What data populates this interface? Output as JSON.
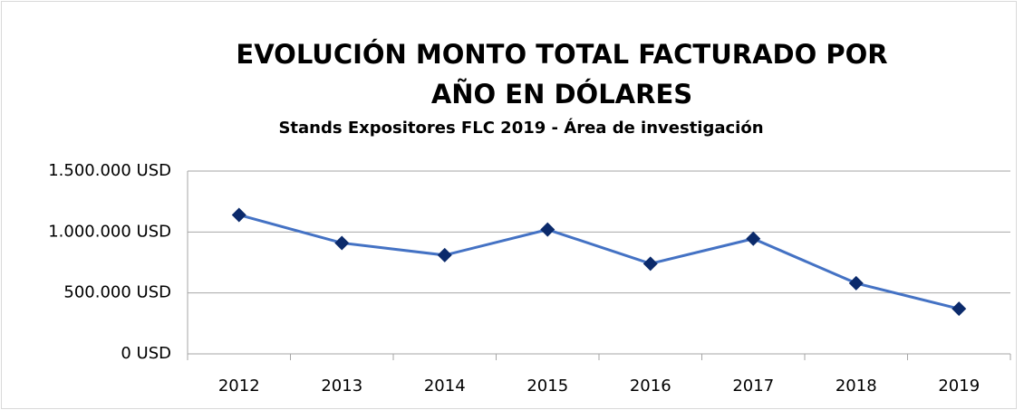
{
  "chart_data": {
    "type": "line",
    "title": "EVOLUCIÓN MONTO TOTAL FACTURADO POR AÑO EN DÓLARES",
    "subtitle": "Stands Expositores FLC 2019 - Área de investigación",
    "categories": [
      "2012",
      "2013",
      "2014",
      "2015",
      "2016",
      "2017",
      "2018",
      "2019"
    ],
    "series": [
      {
        "name": "Monto total facturado",
        "color": "#4472c4",
        "marker_color": "#0b2a6b",
        "values": [
          1140000,
          910000,
          810000,
          1020000,
          740000,
          945000,
          580000,
          370000
        ]
      }
    ],
    "ylim": [
      0,
      1500000
    ],
    "yticks": [
      {
        "value": 0,
        "label": "0 USD"
      },
      {
        "value": 500000,
        "label": "500.000 USD"
      },
      {
        "value": 1000000,
        "label": "1.000.000 USD"
      },
      {
        "value": 1500000,
        "label": "1.500.000 USD"
      }
    ],
    "grid": true
  }
}
